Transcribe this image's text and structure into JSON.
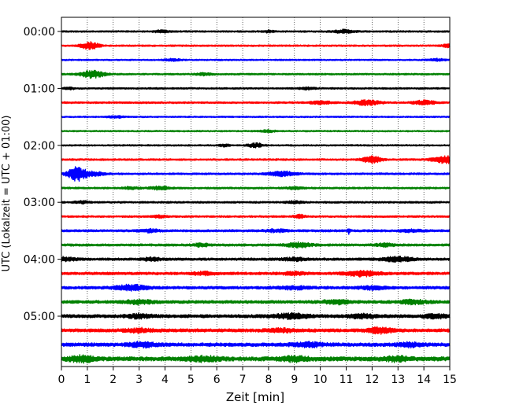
{
  "chart_data": {
    "type": "line",
    "subtype": "helicorder seismogram",
    "xlabel": "Zeit  [min]",
    "ylabel": "UTC (Lokalzeit = UTC + 01:00)",
    "xlim": [
      0,
      15
    ],
    "x_ticks": [
      0,
      1,
      2,
      3,
      4,
      5,
      6,
      7,
      8,
      9,
      10,
      11,
      12,
      13,
      14,
      15
    ],
    "x_tick_labels": [
      "0",
      "1",
      "2",
      "3",
      "4",
      "5",
      "6",
      "7",
      "8",
      "9",
      "10",
      "11",
      "12",
      "13",
      "14",
      "15"
    ],
    "grid": "vertical dotted lines at each minute",
    "row_interval_minutes": 15,
    "y_tick_labels": [
      "00:00",
      "01:00",
      "02:00",
      "03:00",
      "04:00",
      "05:00"
    ],
    "y_tick_rows": [
      0,
      4,
      8,
      12,
      16,
      20
    ],
    "color_cycle": [
      "#000000",
      "#ff0000",
      "#0000ff",
      "#008000"
    ],
    "rows": [
      {
        "color": "#000000",
        "base": 1.0,
        "bursts": [
          [
            8.0,
            1.2,
            0.25
          ],
          [
            10.9,
            2.0,
            0.4
          ],
          [
            3.9,
            1.3,
            0.3
          ]
        ]
      },
      {
        "color": "#ff0000",
        "base": 1.0,
        "bursts": [
          [
            1.1,
            4.5,
            0.35
          ],
          [
            14.9,
            1.8,
            0.2
          ]
        ]
      },
      {
        "color": "#0000ff",
        "base": 0.9,
        "bursts": [
          [
            14.5,
            1.4,
            0.3
          ],
          [
            4.3,
            1.2,
            0.3
          ]
        ]
      },
      {
        "color": "#008000",
        "base": 1.0,
        "bursts": [
          [
            1.2,
            4.5,
            0.45
          ],
          [
            5.5,
            1.3,
            0.3
          ]
        ]
      },
      {
        "color": "#000000",
        "base": 1.0,
        "bursts": [
          [
            9.5,
            1.2,
            0.3
          ],
          [
            0.3,
            1.2,
            0.2
          ]
        ]
      },
      {
        "color": "#ff0000",
        "base": 1.1,
        "bursts": [
          [
            11.8,
            3.0,
            0.5
          ],
          [
            14.0,
            2.6,
            0.4
          ],
          [
            10.0,
            1.8,
            0.4
          ]
        ]
      },
      {
        "color": "#0000ff",
        "base": 0.9,
        "bursts": [
          [
            2.1,
            1.4,
            0.3
          ]
        ]
      },
      {
        "color": "#008000",
        "base": 0.9,
        "bursts": [
          [
            8.0,
            1.2,
            0.3
          ]
        ]
      },
      {
        "color": "#000000",
        "base": 0.9,
        "bursts": [
          [
            7.5,
            2.5,
            0.3
          ],
          [
            6.3,
            1.4,
            0.2
          ]
        ]
      },
      {
        "color": "#ff0000",
        "base": 1.1,
        "bursts": [
          [
            12.0,
            4.5,
            0.35
          ],
          [
            14.8,
            4.5,
            0.45
          ]
        ]
      },
      {
        "color": "#0000ff",
        "base": 1.1,
        "bursts": [
          [
            0.6,
            9.0,
            0.35
          ],
          [
            8.5,
            3.0,
            0.5
          ],
          [
            1.3,
            2.0,
            0.4
          ]
        ]
      },
      {
        "color": "#008000",
        "base": 1.1,
        "bursts": [
          [
            3.8,
            1.8,
            0.4
          ],
          [
            2.7,
            1.4,
            0.3
          ],
          [
            9.0,
            1.3,
            0.3
          ]
        ]
      },
      {
        "color": "#000000",
        "base": 1.1,
        "bursts": [
          [
            0.8,
            1.3,
            0.3
          ],
          [
            9.0,
            1.3,
            0.3
          ]
        ]
      },
      {
        "color": "#ff0000",
        "base": 1.1,
        "bursts": [
          [
            9.2,
            2.0,
            0.2
          ],
          [
            3.8,
            1.3,
            0.3
          ]
        ]
      },
      {
        "color": "#0000ff",
        "base": 1.4,
        "bursts": [
          [
            11.1,
            3.2,
            0.05
          ],
          [
            3.4,
            1.6,
            0.4
          ],
          [
            8.3,
            1.6,
            0.4
          ],
          [
            13.5,
            1.3,
            0.4
          ]
        ]
      },
      {
        "color": "#008000",
        "base": 1.4,
        "bursts": [
          [
            9.2,
            2.6,
            0.5
          ],
          [
            5.4,
            1.6,
            0.3
          ],
          [
            12.5,
            1.6,
            0.4
          ]
        ]
      },
      {
        "color": "#000000",
        "base": 1.5,
        "bursts": [
          [
            0.0,
            2.4,
            0.5
          ],
          [
            13.0,
            2.6,
            0.6
          ],
          [
            3.5,
            1.6,
            0.4
          ],
          [
            9.0,
            1.6,
            0.5
          ]
        ]
      },
      {
        "color": "#ff0000",
        "base": 1.6,
        "bursts": [
          [
            11.6,
            3.2,
            0.6
          ],
          [
            9.0,
            1.6,
            0.4
          ],
          [
            5.5,
            1.6,
            0.4
          ]
        ]
      },
      {
        "color": "#0000ff",
        "base": 1.7,
        "bursts": [
          [
            2.7,
            3.0,
            0.6
          ],
          [
            9.0,
            1.8,
            0.5
          ],
          [
            12.0,
            1.8,
            0.5
          ]
        ]
      },
      {
        "color": "#008000",
        "base": 1.8,
        "bursts": [
          [
            3.0,
            2.2,
            0.5
          ],
          [
            10.6,
            2.2,
            0.5
          ],
          [
            13.6,
            2.0,
            0.5
          ]
        ]
      },
      {
        "color": "#000000",
        "base": 2.0,
        "bursts": [
          [
            8.9,
            2.8,
            0.6
          ],
          [
            11.6,
            2.2,
            0.5
          ],
          [
            3.0,
            2.0,
            0.5
          ],
          [
            14.4,
            2.4,
            0.4
          ]
        ]
      },
      {
        "color": "#ff0000",
        "base": 2.0,
        "bursts": [
          [
            12.3,
            3.0,
            0.5
          ],
          [
            3.0,
            2.0,
            0.5
          ],
          [
            8.5,
            2.0,
            0.5
          ]
        ]
      },
      {
        "color": "#0000ff",
        "base": 2.2,
        "bursts": [
          [
            3.1,
            2.4,
            0.5
          ],
          [
            9.5,
            2.2,
            0.6
          ],
          [
            13.5,
            2.0,
            0.5
          ]
        ]
      },
      {
        "color": "#008000",
        "base": 2.6,
        "bursts": [
          [
            0.8,
            3.0,
            0.5
          ],
          [
            9.0,
            2.6,
            0.5
          ],
          [
            5.5,
            2.2,
            0.6
          ],
          [
            13.0,
            2.2,
            0.5
          ]
        ]
      }
    ]
  }
}
